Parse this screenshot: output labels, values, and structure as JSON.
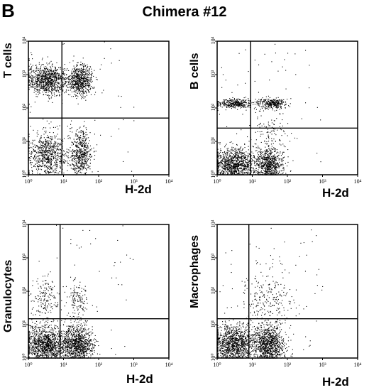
{
  "figure": {
    "panel_letter": "B",
    "title": "Chimera #12"
  },
  "chart_data": [
    {
      "type": "scatter",
      "title": "",
      "ylabel": "T cells",
      "xlabel": "H-2d",
      "x_scale": "log",
      "y_scale": "log",
      "xlim": [
        1,
        10000
      ],
      "ylim": [
        1,
        10000
      ],
      "x_ticks": [
        "10⁰",
        "10¹",
        "10²",
        "10³",
        "10⁴"
      ],
      "y_ticks": [
        "10⁰",
        "10¹",
        "10²",
        "10³",
        "10⁴"
      ],
      "quadrant_gate": {
        "x": 9,
        "y": 50
      },
      "populations": [
        {
          "x_center": 3.5,
          "y_center": 700,
          "spread_x": 0.28,
          "spread_y": 0.22,
          "count": 900
        },
        {
          "x_center": 30,
          "y_center": 700,
          "spread_x": 0.18,
          "spread_y": 0.22,
          "count": 650
        },
        {
          "x_center": 3.5,
          "y_center": 4,
          "spread_x": 0.28,
          "spread_y": 0.35,
          "count": 750
        },
        {
          "x_center": 30,
          "y_center": 4,
          "spread_x": 0.16,
          "spread_y": 0.35,
          "count": 550
        }
      ]
    },
    {
      "type": "scatter",
      "title": "",
      "ylabel": "B cells",
      "xlabel": "H-2d",
      "x_scale": "log",
      "y_scale": "log",
      "xlim": [
        1,
        10000
      ],
      "ylim": [
        1,
        10000
      ],
      "x_ticks": [
        "10⁰",
        "10¹",
        "10²",
        "10³",
        "10⁴"
      ],
      "y_ticks": [
        "10⁰",
        "10¹",
        "10²",
        "10³",
        "10⁴"
      ],
      "quadrant_gate": {
        "x": 9,
        "y": 25
      },
      "populations": [
        {
          "x_center": 3,
          "y_center": 140,
          "spread_x": 0.26,
          "spread_y": 0.07,
          "count": 350
        },
        {
          "x_center": 35,
          "y_center": 140,
          "spread_x": 0.2,
          "spread_y": 0.07,
          "count": 300
        },
        {
          "x_center": 3,
          "y_center": 2,
          "spread_x": 0.3,
          "spread_y": 0.25,
          "count": 1100
        },
        {
          "x_center": 30,
          "y_center": 2,
          "spread_x": 0.18,
          "spread_y": 0.25,
          "count": 700
        },
        {
          "x_center": 30,
          "y_center": 10,
          "spread_x": 0.3,
          "spread_y": 0.6,
          "count": 180
        }
      ]
    },
    {
      "type": "scatter",
      "title": "",
      "ylabel": "Granulocytes",
      "xlabel": "H-2d",
      "x_scale": "log",
      "y_scale": "log",
      "xlim": [
        1,
        10000
      ],
      "ylim": [
        1,
        10000
      ],
      "x_ticks": [
        "10⁰",
        "10¹",
        "10²",
        "10³",
        "10⁴"
      ],
      "y_ticks": [
        "10⁰",
        "10¹",
        "10²",
        "10³",
        "10⁴"
      ],
      "quadrant_gate": {
        "x": 8,
        "y": 15
      },
      "populations": [
        {
          "x_center": 3,
          "y_center": 2.5,
          "spread_x": 0.3,
          "spread_y": 0.3,
          "count": 1200
        },
        {
          "x_center": 25,
          "y_center": 2.5,
          "spread_x": 0.22,
          "spread_y": 0.3,
          "count": 1000
        },
        {
          "x_center": 3,
          "y_center": 60,
          "spread_x": 0.2,
          "spread_y": 0.3,
          "count": 160
        },
        {
          "x_center": 25,
          "y_center": 60,
          "spread_x": 0.14,
          "spread_y": 0.3,
          "count": 130
        }
      ]
    },
    {
      "type": "scatter",
      "title": "",
      "ylabel": "Macrophages",
      "xlabel": "H-2d",
      "x_scale": "log",
      "y_scale": "log",
      "xlim": [
        1,
        10000
      ],
      "ylim": [
        1,
        10000
      ],
      "x_ticks": [
        "10⁰",
        "10¹",
        "10²",
        "10³",
        "10⁴"
      ],
      "y_ticks": [
        "10⁰",
        "10¹",
        "10²",
        "10³",
        "10⁴"
      ],
      "quadrant_gate": {
        "x": 8,
        "y": 15
      },
      "populations": [
        {
          "x_center": 3,
          "y_center": 2.5,
          "spread_x": 0.3,
          "spread_y": 0.3,
          "count": 1200
        },
        {
          "x_center": 30,
          "y_center": 2.5,
          "spread_x": 0.22,
          "spread_y": 0.3,
          "count": 1000
        },
        {
          "x_center": 30,
          "y_center": 60,
          "spread_x": 0.35,
          "spread_y": 0.5,
          "count": 240
        }
      ]
    }
  ]
}
